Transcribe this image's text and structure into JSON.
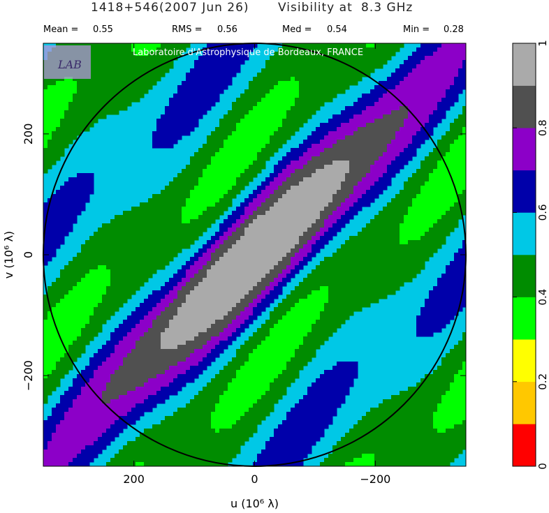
{
  "header": {
    "source": "1418+546",
    "date": "(2007 Jun 26)",
    "label": "Visibility at",
    "freq": "8.3 GHz"
  },
  "stats": {
    "mean_label": "Mean =",
    "mean_value": "0.55",
    "rms_label": "RMS =",
    "rms_value": "0.56",
    "med_label": "Med =",
    "med_value": "0.54",
    "min_label": "Min =",
    "min_value": "0.28"
  },
  "credit": "Laboratoire d'Astrophysique de Bordeaux, FRANCE",
  "logo_text": "LAB",
  "chart_data": {
    "type": "heatmap",
    "xlabel": "u  (10⁶ λ)",
    "ylabel": "v  (10⁶ λ)",
    "xlim": [
      350,
      -350
    ],
    "ylim": [
      -350,
      350
    ],
    "x_ticks": [
      200,
      0,
      -200
    ],
    "x_tick_labels": [
      "200",
      "0",
      "−200"
    ],
    "y_ticks": [
      200,
      0,
      -200
    ],
    "y_tick_labels": [
      "200",
      "0",
      "−200"
    ],
    "circle_radius": 350,
    "colorbar": {
      "levels": [
        0,
        0.1,
        0.2,
        0.3,
        0.4,
        0.5,
        0.6,
        0.7,
        0.8,
        0.9,
        1.0
      ],
      "colors": [
        "#ff0000",
        "#ffc800",
        "#ffff00",
        "#00ff00",
        "#008c00",
        "#00c8e6",
        "#0000aa",
        "#8c00c8",
        "#505050",
        "#aaaaaa"
      ],
      "tick_values": [
        0,
        0.2,
        0.4,
        0.6,
        0.8,
        1
      ],
      "tick_labels": [
        "0",
        "0.2",
        "0.4",
        "0.6",
        "0.8",
        "1"
      ]
    }
  }
}
